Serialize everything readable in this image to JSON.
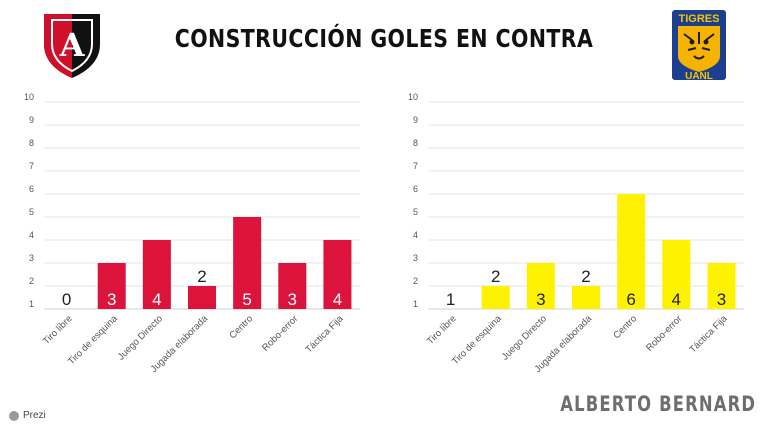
{
  "title": "CONSTRUCCIÓN GOLES EN CONTRA",
  "author": "ALBERTO BERNARD",
  "brand": "Prezi",
  "logos": {
    "left": {
      "icon": "atlas-crest-icon",
      "text": "A"
    },
    "right": {
      "icon": "tigres-crest-icon",
      "text_top": "TIGRES",
      "text_bottom": "UANL"
    }
  },
  "chart_data": [
    {
      "type": "bar",
      "categories": [
        "Tiro libre",
        "Tiro de esquina",
        "Juego Directo",
        "Jugada elaborada",
        "Centro",
        "Robo-error",
        "Táctica Fija"
      ],
      "values": [
        0,
        3,
        4,
        2,
        5,
        3,
        4
      ],
      "data_labels": [
        "0",
        "3",
        "4",
        "2",
        "5",
        "3",
        "4"
      ],
      "y_ticks": [
        "1",
        "2",
        "3",
        "4",
        "5",
        "6",
        "7",
        "8",
        "9",
        "10"
      ],
      "ylim": [
        1,
        10
      ],
      "grid": true,
      "color": "#dc143c"
    },
    {
      "type": "bar",
      "categories": [
        "Tiro libre",
        "Tiro de esquina",
        "Juego Directo",
        "Jugada elaborada",
        "Centro",
        "Robo-error",
        "Táctica Fija"
      ],
      "values": [
        1,
        2,
        3,
        2,
        6,
        4,
        3
      ],
      "data_labels": [
        "1",
        "2",
        "3",
        "2",
        "6",
        "4",
        "3"
      ],
      "y_ticks": [
        "1",
        "2",
        "3",
        "4",
        "5",
        "6",
        "7",
        "8",
        "9",
        "10"
      ],
      "ylim": [
        1,
        10
      ],
      "grid": true,
      "color": "#fff200"
    }
  ]
}
